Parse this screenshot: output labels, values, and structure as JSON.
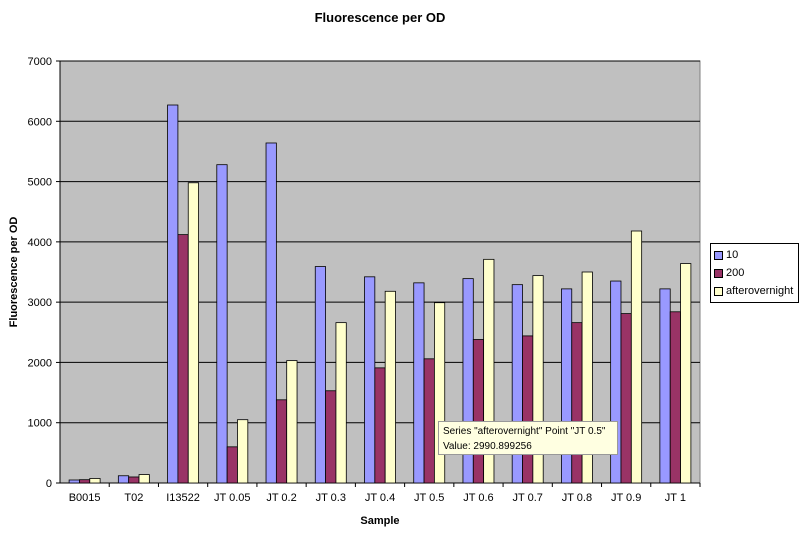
{
  "chart_data": {
    "type": "bar",
    "title": "Fluorescence per OD",
    "xlabel": "Sample",
    "ylabel": "Fluorescence per OD",
    "ylim": [
      0,
      7000
    ],
    "yticks": [
      "0",
      "1000",
      "2000",
      "3000",
      "4000",
      "5000",
      "6000",
      "7000"
    ],
    "grid": true,
    "legend_position": "right",
    "categories": [
      "B0015",
      "T02",
      "I13522",
      "JT 0.05",
      "JT 0.2",
      "JT 0.3",
      "JT 0.4",
      "JT 0.5",
      "JT 0.6",
      "JT 0.7",
      "JT 0.8",
      "JT 0.9",
      "JT 1"
    ],
    "series": [
      {
        "name": "10",
        "color": "#9999ff",
        "values": [
          50,
          120,
          6270,
          5280,
          5640,
          3590,
          3420,
          3320,
          3390,
          3290,
          3220,
          3350,
          3220
        ]
      },
      {
        "name": "200",
        "color": "#993366",
        "values": [
          55,
          100,
          4120,
          600,
          1380,
          1530,
          1910,
          2060,
          2380,
          2440,
          2660,
          2810,
          2840
        ]
      },
      {
        "name": "afterovernight",
        "color": "#ffffcc",
        "values": [
          75,
          140,
          4980,
          1050,
          2030,
          2660,
          3180,
          2990.899256,
          3710,
          3440,
          3500,
          4180,
          3640
        ]
      }
    ],
    "plot_background": "#c0c0c0"
  },
  "tooltip": {
    "line1": "Series \"afterovernight\" Point \"JT 0.5\"",
    "line2": "Value: 2990.899256"
  }
}
